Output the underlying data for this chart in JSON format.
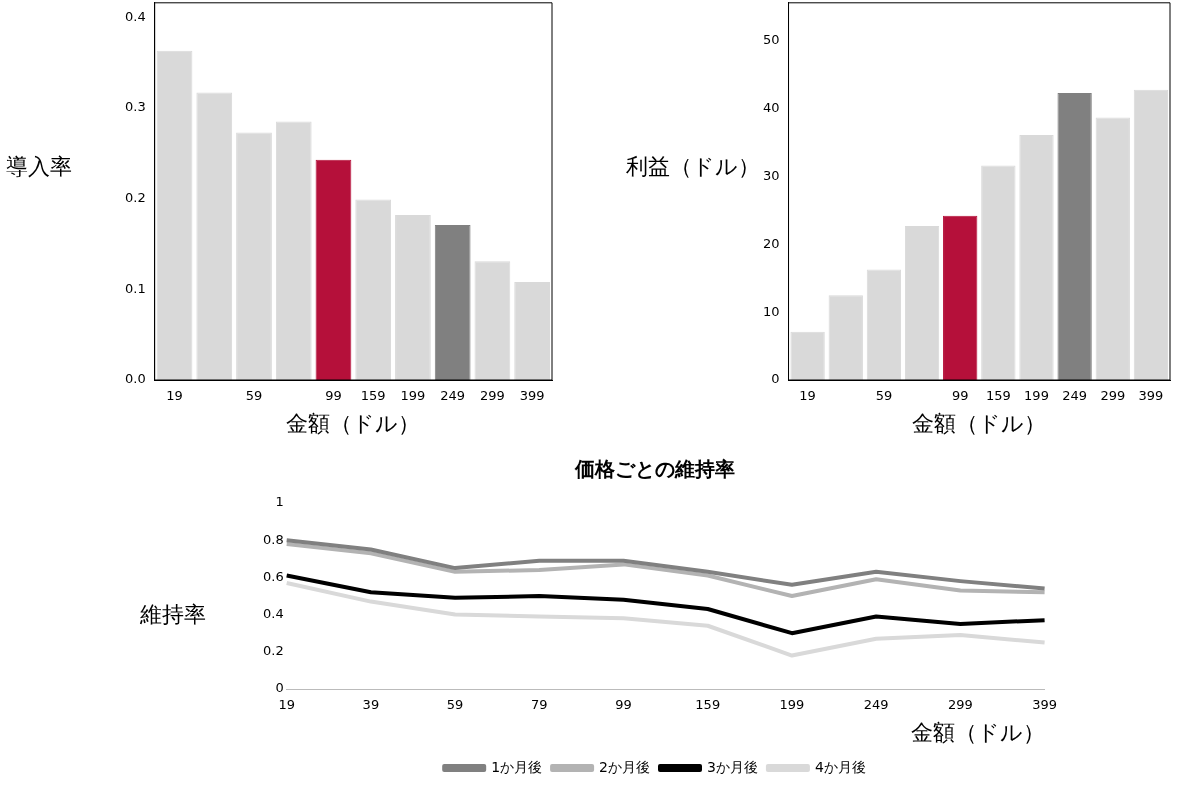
{
  "chart_data": [
    {
      "type": "bar",
      "xlabel": "金額（ドル）",
      "ylabel": "導入率",
      "categories": [
        "19",
        null,
        "59",
        null,
        "99",
        "159",
        "199",
        "249",
        "299",
        "399"
      ],
      "values": [
        0.363,
        0.317,
        0.273,
        0.285,
        0.243,
        0.199,
        0.182,
        0.171,
        0.131,
        0.108
      ],
      "colors": [
        "#d9d9d9",
        "#d9d9d9",
        "#d9d9d9",
        "#d9d9d9",
        "#b5103a",
        "#d9d9d9",
        "#d9d9d9",
        "#808080",
        "#d9d9d9",
        "#d9d9d9"
      ],
      "ylim": [
        0,
        0.416
      ],
      "yticks": [
        {
          "value": 0,
          "label": "0.0"
        },
        0.1,
        0.2,
        0.3,
        0.4
      ],
      "grid": false,
      "legend": false
    },
    {
      "type": "bar",
      "xlabel": "金額（ドル）",
      "ylabel": "利益（ドル）",
      "categories": [
        "19",
        null,
        "59",
        null,
        "99",
        "159",
        "199",
        "249",
        "299",
        "399"
      ],
      "values": [
        7.1,
        12.5,
        16.3,
        22.7,
        24.2,
        31.6,
        36.1,
        42.3,
        38.7,
        42.8
      ],
      "colors": [
        "#d9d9d9",
        "#d9d9d9",
        "#d9d9d9",
        "#d9d9d9",
        "#b5103a",
        "#d9d9d9",
        "#d9d9d9",
        "#808080",
        "#d9d9d9",
        "#d9d9d9"
      ],
      "ylim": [
        0,
        55.6
      ],
      "yticks": [
        0,
        10,
        20,
        30,
        40,
        50
      ],
      "grid": false,
      "legend": false
    },
    {
      "type": "line",
      "title": "価格ごとの維持率",
      "xlabel": "金額（ドル）",
      "ylabel": "維持率",
      "categories": [
        "19",
        "39",
        "59",
        "79",
        "99",
        "159",
        "199",
        "249",
        "299",
        "399"
      ],
      "series": [
        {
          "name": "1か月後",
          "color": "#808080",
          "values": [
            0.8,
            0.75,
            0.65,
            0.69,
            0.69,
            0.63,
            0.56,
            0.63,
            0.58,
            0.54
          ]
        },
        {
          "name": "2か月後",
          "color": "#b3b3b3",
          "values": [
            0.78,
            0.73,
            0.63,
            0.64,
            0.67,
            0.61,
            0.5,
            0.59,
            0.53,
            0.52
          ]
        },
        {
          "name": "3か月後",
          "color": "#000000",
          "values": [
            0.61,
            0.52,
            0.49,
            0.5,
            0.48,
            0.43,
            0.3,
            0.39,
            0.35,
            0.37
          ]
        },
        {
          "name": "4か月後",
          "color": "#d9d9d9",
          "values": [
            0.57,
            0.47,
            0.4,
            0.39,
            0.38,
            0.34,
            0.18,
            0.27,
            0.29,
            0.25
          ]
        }
      ],
      "ylim": [
        0,
        1
      ],
      "yticks": [
        0,
        0.2,
        0.4,
        0.6,
        0.8,
        1
      ],
      "grid": false,
      "legend": "bottom"
    }
  ]
}
